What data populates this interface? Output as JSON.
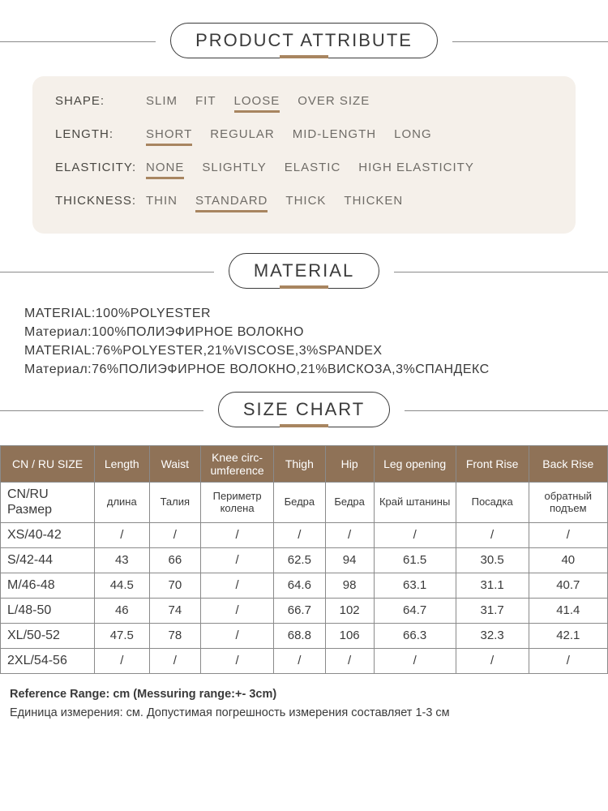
{
  "colors": {
    "accent": "#a88560",
    "table_header_bg": "#8f7257",
    "table_header_fg": "#ffffff",
    "card_bg": "#f5f0ea",
    "border": "#8a8a8a",
    "text": "#3a3a3a"
  },
  "sections": {
    "attribute_title": "PRODUCT ATTRIBUTE",
    "material_title": "MATERIAL",
    "size_title": "SIZE CHART"
  },
  "attributes": [
    {
      "label": "SHAPE:",
      "options": [
        "SLIM",
        "FIT",
        "LOOSE",
        "OVER SIZE"
      ],
      "selected": "LOOSE"
    },
    {
      "label": "LENGTH:",
      "options": [
        "SHORT",
        "REGULAR",
        "MID-LENGTH",
        "LONG"
      ],
      "selected": "SHORT"
    },
    {
      "label": "ELASTICITY:",
      "options": [
        "NONE",
        "SLIGHTLY",
        "ELASTIC",
        "HIGH ELASTICITY"
      ],
      "selected": "NONE"
    },
    {
      "label": "THICKNESS:",
      "options": [
        "THIN",
        "STANDARD",
        "THICK",
        "THICKEN"
      ],
      "selected": "STANDARD"
    }
  ],
  "material_lines": [
    "MATERIAL:100%POLYESTER",
    "Материал:100%ПОЛИЭФИРНОЕ ВОЛОКНО",
    "MATERIAL:76%POLYESTER,21%VISCOSE,3%SPANDEX",
    "Материал:76%ПОЛИЭФИРНОЕ ВОЛОКНО,21%ВИСКОЗА,3%СПАНДЕКС"
  ],
  "size_chart": {
    "columns_en": [
      "CN / RU SIZE",
      "Length",
      "Waist",
      "Knee circ-\numference",
      "Thigh",
      "Hip",
      "Leg opening",
      "Front Rise",
      "Back Rise"
    ],
    "columns_ru": [
      "CN/RU Размер",
      "длина",
      "Талия",
      "Периметр колена",
      "Бедра",
      "Бедра",
      "Край штанины",
      "Посадка",
      "обратный подъем"
    ],
    "col_widths_pct": [
      15.5,
      9,
      8.5,
      12,
      8.5,
      8,
      13.5,
      12,
      13
    ],
    "rows": [
      [
        "XS/40-42",
        "/",
        "/",
        "/",
        "/",
        "/",
        "/",
        "/",
        "/"
      ],
      [
        "S/42-44",
        "43",
        "66",
        "/",
        "62.5",
        "94",
        "61.5",
        "30.5",
        "40"
      ],
      [
        "M/46-48",
        "44.5",
        "70",
        "/",
        "64.6",
        "98",
        "63.1",
        "31.1",
        "40.7"
      ],
      [
        "L/48-50",
        "46",
        "74",
        "/",
        "66.7",
        "102",
        "64.7",
        "31.7",
        "41.4"
      ],
      [
        "XL/50-52",
        "47.5",
        "78",
        "/",
        "68.8",
        "106",
        "66.3",
        "32.3",
        "42.1"
      ],
      [
        "2XL/54-56",
        "/",
        "/",
        "/",
        "/",
        "/",
        "/",
        "/",
        "/"
      ]
    ]
  },
  "footnotes": {
    "line1": "Reference Range: cm (Messuring range:+- 3cm)",
    "line2": "Единица измерения: см. Допустимая погрешность измерения составляет 1-3 см"
  }
}
